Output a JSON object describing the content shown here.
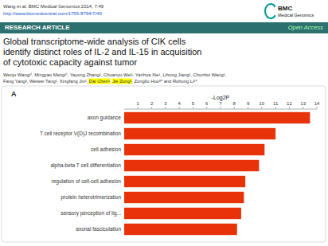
{
  "page": {
    "paper_line1": "Wang et al. BMC Medical Genomics 2014, 7:49",
    "paper_line2": "http://www.biomedcentral.com/1755-8794/7/49",
    "logo_text": "BMC",
    "logo_subtext": "Medical Genomics",
    "section_label": "RESEARCH ARTICLE",
    "open_access": "Open Access",
    "title_lines": [
      "Global transcriptome-wide analysis of CIK cells",
      "identify distinct roles of IL-2 and IL-15 in acquisition",
      "of cytotoxic capacity against tumor"
    ],
    "authors_line1": "Wenju Wang¹ᵗ, Mingyao Meng¹ᵗ, Yayong Zhang¹, Chuanyu Wei¹, Yanhua Xie¹, Lihong Jiang¹, Chunhui Wang¹,",
    "authors_line2": [
      {
        "text": "Fang Yang², Weiwei Tang¹, Xingfang Jin¹, ",
        "highlight": false
      },
      {
        "text": "Dai Chen¹",
        "highlight": true
      },
      {
        "text": ", ",
        "highlight": false
      },
      {
        "text": "Jie Zong¹",
        "highlight": true
      },
      {
        "text": ", Zongliu Hou³* and Ruhong Li¹*",
        "highlight": false
      }
    ]
  },
  "chart_data": {
    "type": "bar",
    "orientation": "horizontal",
    "title": "A",
    "x_label": "-Log2P",
    "categories": [
      "axon guidance",
      "T cell receptor V(D)J recombination",
      "cell adhesion",
      "alpha-beta T cell differentiation",
      "regulation of cell-cell adhesion",
      "protein heterotrimerization",
      "sensory perception of lig...",
      "axonal fasciculation"
    ],
    "values": [
      13.5,
      11.0,
      10.2,
      9.8,
      8.8,
      8.7,
      8.5,
      8.2
    ],
    "color": "#e8320a",
    "xlim": [
      0,
      14
    ],
    "xticks": [
      1,
      2,
      3,
      4,
      5,
      6,
      7,
      8,
      9,
      10,
      11,
      12,
      13,
      14
    ],
    "grid": false
  }
}
